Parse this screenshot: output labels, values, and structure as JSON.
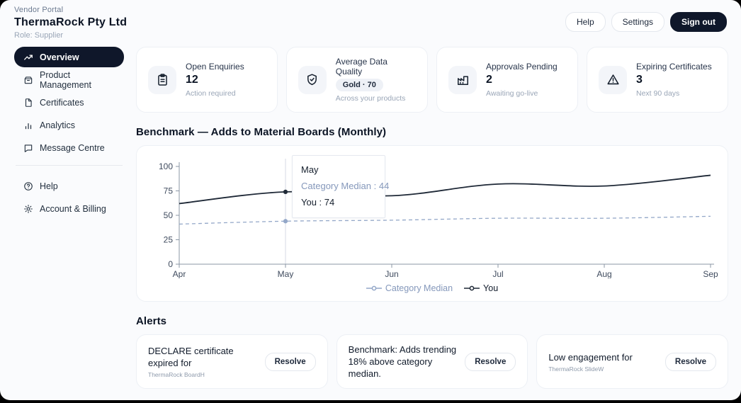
{
  "window": {
    "eyebrow": "Vendor Portal",
    "title": "ThermaRock Pty Ltd",
    "role": "Role: Supplier"
  },
  "topbar": {
    "help_label": "Help",
    "settings_label": "Settings",
    "signout_label": "Sign out"
  },
  "sidebar": {
    "items": [
      {
        "label": "Overview",
        "icon": "trending-up-icon",
        "active": true
      },
      {
        "label": "Product Management",
        "icon": "package-icon",
        "active": false
      },
      {
        "label": "Certificates",
        "icon": "file-icon",
        "active": false
      },
      {
        "label": "Analytics",
        "icon": "bar-chart-icon",
        "active": false
      },
      {
        "label": "Message Centre",
        "icon": "chat-icon",
        "active": false
      }
    ],
    "footer_items": [
      {
        "label": "Help",
        "icon": "help-circle-icon"
      },
      {
        "label": "Account & Billing",
        "icon": "gear-icon"
      }
    ]
  },
  "stats": {
    "cards": [
      {
        "icon": "clipboard-icon",
        "title": "Open Enquiries",
        "value": "12",
        "sub": "Action required",
        "value_style": "number"
      },
      {
        "icon": "shield-check-icon",
        "title": "Average Data Quality",
        "value": "Gold · 70",
        "sub": "Across your products",
        "value_style": "badge"
      },
      {
        "icon": "factory-icon",
        "title": "Approvals Pending",
        "value": "2",
        "sub": "Awaiting go-live",
        "value_style": "number"
      },
      {
        "icon": "warning-triangle-icon",
        "title": "Expiring Certificates",
        "value": "3",
        "sub": "Next 90 days",
        "value_style": "number"
      }
    ]
  },
  "chart_data": {
    "type": "line",
    "title": "Benchmark — Adds to Material Boards (Monthly)",
    "x": [
      "Apr",
      "May",
      "Jun",
      "Jul",
      "Aug",
      "Sep"
    ],
    "series": [
      {
        "name": "Category Median",
        "values": [
          41,
          44,
          45,
          47,
          47,
          49
        ],
        "style": "dashed",
        "color": "#93a7c8"
      },
      {
        "name": "You",
        "values": [
          62,
          74,
          70,
          82,
          80,
          91
        ],
        "style": "solid",
        "color": "#1f2937"
      }
    ],
    "ylim": [
      0,
      100
    ],
    "yticks": [
      0,
      25,
      50,
      75,
      100
    ],
    "grid": false,
    "legend_position": "bottom",
    "hover": {
      "index": 1,
      "lines": [
        {
          "text": "May",
          "tone": "dark"
        },
        {
          "text": "Category Median : 44",
          "tone": "median"
        },
        {
          "text": "You : 74",
          "tone": "dark"
        }
      ]
    }
  },
  "alerts": {
    "heading": "Alerts",
    "items": [
      {
        "title": "DECLARE certificate expired for",
        "subtitle": "ThermaRock BoardH",
        "action": "Resolve"
      },
      {
        "title": "Benchmark: Adds trending 18% above category median.",
        "subtitle": "",
        "action": "Resolve"
      },
      {
        "title": "Low engagement for",
        "subtitle": "ThermaRock SlideW",
        "action": "Resolve"
      }
    ]
  },
  "colors": {
    "accent_dark": "#0f172a",
    "median_blue": "#8598bb",
    "you_line": "#1f2937",
    "axis_gray": "#8b97a5",
    "page_bg": "#fafbfd"
  }
}
